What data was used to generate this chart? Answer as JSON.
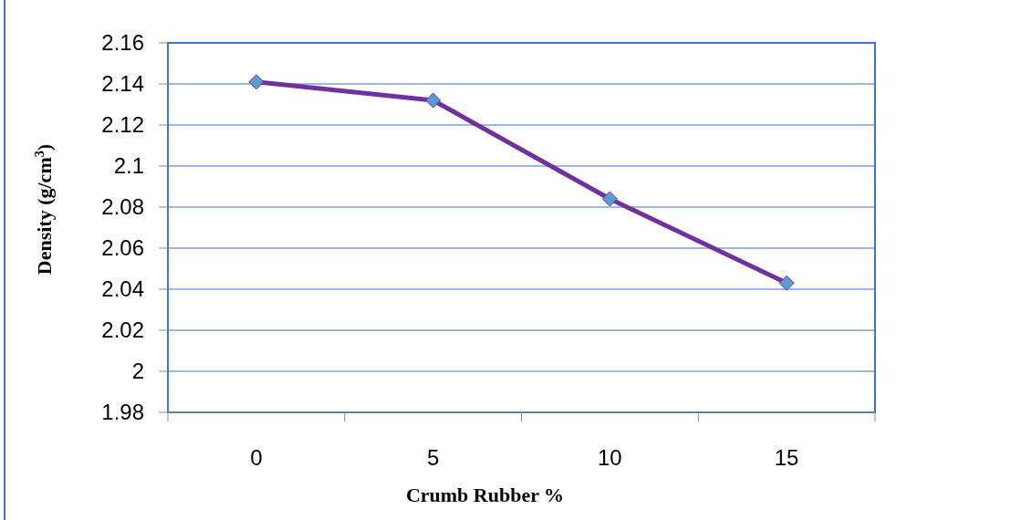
{
  "chart_data": {
    "type": "line",
    "xlabel": "Crumb Rubber %",
    "ylabel": "Density (g/cm$^{3}$)",
    "categories": [
      "0",
      "5",
      "10",
      "15"
    ],
    "series": [
      {
        "color": "#7030a0",
        "values": [
          2.141,
          2.132,
          2.084,
          2.043
        ]
      }
    ],
    "ylim": [
      1.98,
      2.16
    ],
    "yticks": [
      1.98,
      {
        "value": 2,
        "label": "2"
      },
      2.02,
      2.04,
      2.06,
      2.08,
      {
        "value": 2.1,
        "label": "2.1"
      },
      2.12,
      2.14,
      2.16
    ],
    "grid": "y",
    "marker": "diamond",
    "line_style": "solid"
  }
}
